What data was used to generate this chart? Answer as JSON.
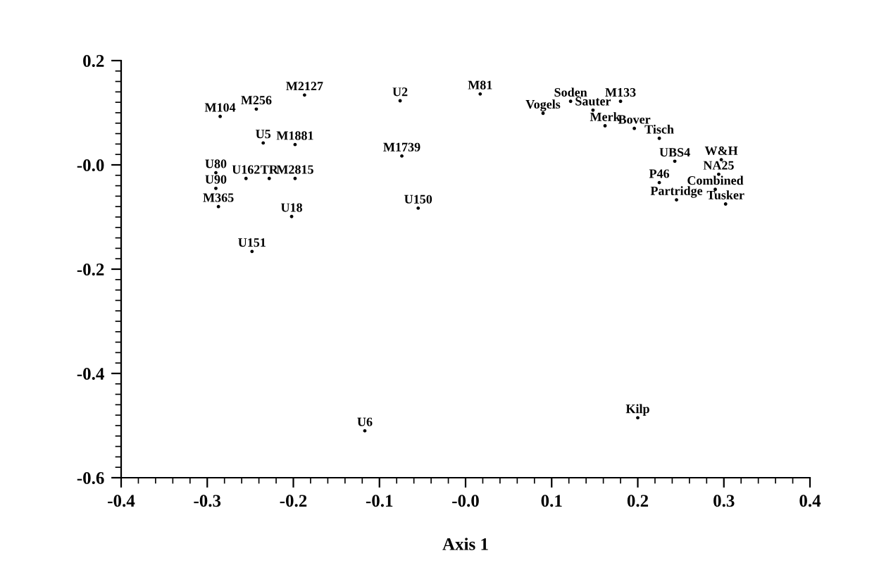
{
  "chart_data": {
    "type": "scatter",
    "xlabel": "Axis 1",
    "xlim": [
      -0.4,
      0.4
    ],
    "ylim": [
      -0.6,
      0.2
    ],
    "xticks": [
      -0.4,
      -0.3,
      -0.2,
      -0.1,
      {
        "value": 0,
        "label": "-0.0"
      },
      0.1,
      0.2,
      0.3,
      0.4
    ],
    "yticks": [
      -0.6,
      -0.4,
      -0.2,
      {
        "value": 0,
        "label": "-0.0"
      },
      0.2
    ],
    "grid": false,
    "marker": "circle",
    "series": [
      {
        "color": "#000000",
        "x": [
          -0.187,
          -0.285,
          -0.243,
          -0.235,
          -0.198,
          -0.076,
          -0.074,
          -0.29,
          -0.29,
          -0.255,
          -0.228,
          -0.198,
          -0.287,
          -0.202,
          -0.055,
          -0.248,
          -0.117,
          0.017,
          0.09,
          0.122,
          0.148,
          0.18,
          0.162,
          0.196,
          0.225,
          0.243,
          0.297,
          0.294,
          0.225,
          0.245,
          0.29,
          0.302,
          0.2
        ],
        "values": [
          0.134,
          0.093,
          0.107,
          0.042,
          0.039,
          0.123,
          0.017,
          -0.015,
          -0.045,
          -0.026,
          -0.026,
          -0.026,
          -0.08,
          -0.099,
          -0.083,
          -0.166,
          -0.51,
          0.136,
          0.099,
          0.122,
          0.105,
          0.122,
          0.075,
          0.07,
          0.051,
          0.007,
          0.01,
          -0.018,
          -0.034,
          -0.067,
          -0.047,
          -0.075,
          -0.485
        ]
      }
    ],
    "annotations": [
      {
        "text": "M2127",
        "x": -0.187,
        "y": 0.134
      },
      {
        "text": "M104",
        "x": -0.285,
        "y": 0.093
      },
      {
        "text": "M256",
        "x": -0.243,
        "y": 0.107
      },
      {
        "text": "U5",
        "x": -0.235,
        "y": 0.042
      },
      {
        "text": "M1881",
        "x": -0.198,
        "y": 0.039
      },
      {
        "text": "U2",
        "x": -0.076,
        "y": 0.123
      },
      {
        "text": "M1739",
        "x": -0.074,
        "y": 0.017
      },
      {
        "text": "U80",
        "x": -0.29,
        "y": -0.015
      },
      {
        "text": "U90",
        "x": -0.29,
        "y": -0.045
      },
      {
        "text": "U162",
        "x": -0.255,
        "y": -0.026
      },
      {
        "text": "TR",
        "x": -0.228,
        "y": -0.026
      },
      {
        "text": "M2815",
        "x": -0.198,
        "y": -0.026
      },
      {
        "text": "M365",
        "x": -0.287,
        "y": -0.08
      },
      {
        "text": "U18",
        "x": -0.202,
        "y": -0.099
      },
      {
        "text": "U150",
        "x": -0.055,
        "y": -0.083
      },
      {
        "text": "U151",
        "x": -0.248,
        "y": -0.166
      },
      {
        "text": "U6",
        "x": -0.117,
        "y": -0.51
      },
      {
        "text": "M81",
        "x": 0.017,
        "y": 0.136
      },
      {
        "text": "Vogels",
        "x": 0.09,
        "y": 0.099
      },
      {
        "text": "Soden",
        "x": 0.122,
        "y": 0.122
      },
      {
        "text": "Sauter",
        "x": 0.148,
        "y": 0.105
      },
      {
        "text": "M133",
        "x": 0.18,
        "y": 0.122
      },
      {
        "text": "Merk",
        "x": 0.162,
        "y": 0.075
      },
      {
        "text": "Bover",
        "x": 0.196,
        "y": 0.07
      },
      {
        "text": "Tisch",
        "x": 0.225,
        "y": 0.051
      },
      {
        "text": "UBS4",
        "x": 0.243,
        "y": 0.007
      },
      {
        "text": "W&H",
        "x": 0.297,
        "y": 0.01
      },
      {
        "text": "NA25",
        "x": 0.294,
        "y": -0.018
      },
      {
        "text": "P46",
        "x": 0.225,
        "y": -0.034
      },
      {
        "text": "Partridge",
        "x": 0.245,
        "y": -0.067
      },
      {
        "text": "Combined",
        "x": 0.29,
        "y": -0.047
      },
      {
        "text": "Tusker",
        "x": 0.302,
        "y": -0.075
      },
      {
        "text": "Kilp",
        "x": 0.2,
        "y": -0.485
      }
    ]
  }
}
